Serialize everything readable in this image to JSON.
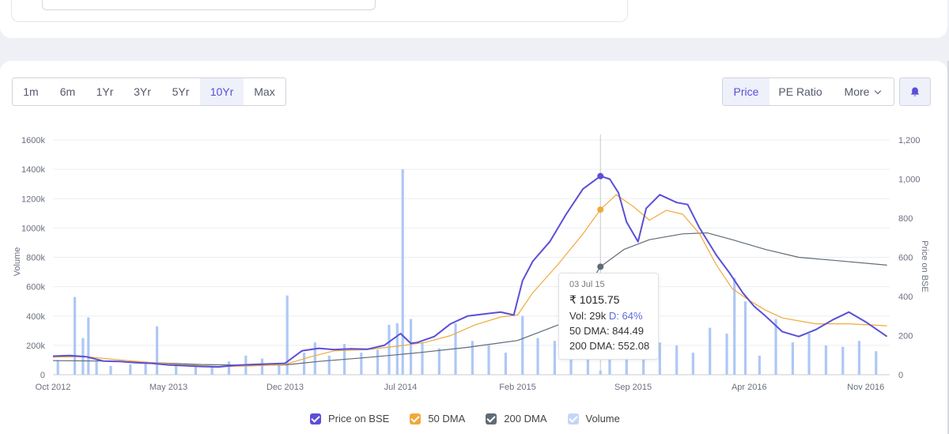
{
  "range_buttons": [
    "1m",
    "6m",
    "1Yr",
    "3Yr",
    "5Yr",
    "10Yr",
    "Max"
  ],
  "active_range": "10Yr",
  "metric_buttons": {
    "price": "Price",
    "pe": "PE Ratio",
    "more": "More"
  },
  "tooltip": {
    "date": "03 Jul 15",
    "price": "₹ 1015.75",
    "vol_label": "Vol: 29k",
    "delivery": "D: 64%",
    "dma50": "50 DMA: 844.49",
    "dma200": "200 DMA: 552.08"
  },
  "colors": {
    "price": "#5b4fd6",
    "dma50": "#f0a93b",
    "dma200": "#5f6b76",
    "volume": "#aec8f5",
    "accent": "#5b4fd6"
  },
  "legend": [
    {
      "label": "Price on BSE",
      "color": "#5b4fd6"
    },
    {
      "label": "50 DMA",
      "color": "#f0a93b"
    },
    {
      "label": "200 DMA",
      "color": "#5f6b76"
    },
    {
      "label": "Volume",
      "color": "#c2d6f7"
    }
  ],
  "chart_data": {
    "type": "line",
    "xlabel": "",
    "ylabel_left": "Volume",
    "ylabel_right": "Price on BSE",
    "x_ticks": [
      "Oct 2012",
      "May 2013",
      "Dec 2013",
      "Jul 2014",
      "Feb 2015",
      "Sep 2015",
      "Apr 2016",
      "Nov 2016"
    ],
    "x_range": [
      "2012-10-01",
      "2016-12-15"
    ],
    "ylim_left": [
      0,
      1600000
    ],
    "left_ticks": [
      "0",
      "200k",
      "400k",
      "600k",
      "800k",
      "1000k",
      "1200k",
      "1400k",
      "1600k"
    ],
    "ylim_right": [
      0,
      1200
    ],
    "right_ticks": [
      "0",
      "200",
      "400",
      "600",
      "800",
      "1,000",
      "1,200"
    ],
    "grid": true,
    "legend_position": "bottom",
    "series": [
      {
        "name": "Price on BSE",
        "points": [
          [
            "2012-10-01",
            95
          ],
          [
            "2012-11-01",
            98
          ],
          [
            "2012-12-01",
            92
          ],
          [
            "2013-01-01",
            70
          ],
          [
            "2013-02-01",
            68
          ],
          [
            "2013-03-01",
            62
          ],
          [
            "2013-04-01",
            58
          ],
          [
            "2013-05-01",
            50
          ],
          [
            "2013-06-01",
            46
          ],
          [
            "2013-07-01",
            42
          ],
          [
            "2013-08-01",
            40
          ],
          [
            "2013-09-01",
            48
          ],
          [
            "2013-10-01",
            52
          ],
          [
            "2013-11-01",
            55
          ],
          [
            "2013-12-01",
            58
          ],
          [
            "2014-01-01",
            122
          ],
          [
            "2014-02-01",
            135
          ],
          [
            "2014-03-01",
            128
          ],
          [
            "2014-04-01",
            132
          ],
          [
            "2014-05-01",
            130
          ],
          [
            "2014-06-01",
            150
          ],
          [
            "2014-07-01",
            210
          ],
          [
            "2014-07-20",
            160
          ],
          [
            "2014-08-01",
            165
          ],
          [
            "2014-09-01",
            195
          ],
          [
            "2014-10-01",
            260
          ],
          [
            "2014-11-01",
            300
          ],
          [
            "2014-12-01",
            310
          ],
          [
            "2015-01-01",
            320
          ],
          [
            "2015-01-25",
            305
          ],
          [
            "2015-02-10",
            480
          ],
          [
            "2015-03-01",
            580
          ],
          [
            "2015-04-01",
            680
          ],
          [
            "2015-05-01",
            820
          ],
          [
            "2015-06-01",
            950
          ],
          [
            "2015-07-03",
            1015
          ],
          [
            "2015-07-20",
            1000
          ],
          [
            "2015-08-05",
            930
          ],
          [
            "2015-08-20",
            780
          ],
          [
            "2015-09-10",
            680
          ],
          [
            "2015-09-25",
            850
          ],
          [
            "2015-10-20",
            920
          ],
          [
            "2015-11-20",
            880
          ],
          [
            "2015-12-10",
            870
          ],
          [
            "2016-01-01",
            750
          ],
          [
            "2016-02-01",
            610
          ],
          [
            "2016-02-25",
            520
          ],
          [
            "2016-03-20",
            420
          ],
          [
            "2016-04-10",
            350
          ],
          [
            "2016-05-01",
            300
          ],
          [
            "2016-06-01",
            220
          ],
          [
            "2016-07-01",
            195
          ],
          [
            "2016-08-01",
            230
          ],
          [
            "2016-09-01",
            280
          ],
          [
            "2016-10-01",
            320
          ],
          [
            "2016-11-01",
            270
          ],
          [
            "2016-12-10",
            195
          ]
        ]
      },
      {
        "name": "50 DMA",
        "points": [
          [
            "2012-10-01",
            90
          ],
          [
            "2012-12-01",
            92
          ],
          [
            "2013-02-01",
            75
          ],
          [
            "2013-04-01",
            62
          ],
          [
            "2013-06-01",
            50
          ],
          [
            "2013-08-01",
            42
          ],
          [
            "2013-10-01",
            45
          ],
          [
            "2013-12-01",
            52
          ],
          [
            "2014-01-15",
            90
          ],
          [
            "2014-03-01",
            122
          ],
          [
            "2014-05-01",
            128
          ],
          [
            "2014-07-01",
            148
          ],
          [
            "2014-08-15",
            165
          ],
          [
            "2014-10-01",
            200
          ],
          [
            "2014-11-15",
            255
          ],
          [
            "2015-01-01",
            295
          ],
          [
            "2015-02-01",
            305
          ],
          [
            "2015-03-01",
            420
          ],
          [
            "2015-04-15",
            560
          ],
          [
            "2015-06-01",
            720
          ],
          [
            "2015-07-03",
            844
          ],
          [
            "2015-08-01",
            920
          ],
          [
            "2015-09-01",
            860
          ],
          [
            "2015-10-01",
            790
          ],
          [
            "2015-11-01",
            840
          ],
          [
            "2015-12-01",
            820
          ],
          [
            "2016-01-01",
            720
          ],
          [
            "2016-02-01",
            560
          ],
          [
            "2016-03-01",
            440
          ],
          [
            "2016-04-01",
            380
          ],
          [
            "2016-05-01",
            330
          ],
          [
            "2016-06-01",
            290
          ],
          [
            "2016-08-01",
            260
          ],
          [
            "2016-10-01",
            260
          ],
          [
            "2016-12-10",
            250
          ]
        ]
      },
      {
        "name": "200 DMA",
        "points": [
          [
            "2012-10-01",
            72
          ],
          [
            "2013-01-01",
            70
          ],
          [
            "2013-04-01",
            62
          ],
          [
            "2013-07-01",
            52
          ],
          [
            "2013-10-01",
            48
          ],
          [
            "2013-12-01",
            50
          ],
          [
            "2014-02-01",
            68
          ],
          [
            "2014-05-01",
            88
          ],
          [
            "2014-08-01",
            112
          ],
          [
            "2014-11-01",
            140
          ],
          [
            "2015-02-01",
            175
          ],
          [
            "2015-05-01",
            270
          ],
          [
            "2015-07-03",
            552
          ],
          [
            "2015-08-15",
            640
          ],
          [
            "2015-10-01",
            690
          ],
          [
            "2015-12-01",
            720
          ],
          [
            "2016-01-15",
            725
          ],
          [
            "2016-03-01",
            690
          ],
          [
            "2016-05-01",
            640
          ],
          [
            "2016-07-01",
            600
          ],
          [
            "2016-09-01",
            585
          ],
          [
            "2016-12-10",
            560
          ]
        ]
      }
    ],
    "volume": [
      [
        "2012-10-10",
        100000
      ],
      [
        "2012-11-10",
        530000
      ],
      [
        "2012-11-25",
        250000
      ],
      [
        "2012-12-05",
        390000
      ],
      [
        "2012-12-20",
        90000
      ],
      [
        "2013-01-15",
        60000
      ],
      [
        "2013-02-20",
        70000
      ],
      [
        "2013-03-20",
        90000
      ],
      [
        "2013-04-10",
        330000
      ],
      [
        "2013-05-15",
        80000
      ],
      [
        "2013-06-20",
        60000
      ],
      [
        "2013-07-20",
        50000
      ],
      [
        "2013-08-20",
        90000
      ],
      [
        "2013-09-20",
        130000
      ],
      [
        "2013-10-20",
        110000
      ],
      [
        "2013-11-20",
        70000
      ],
      [
        "2013-12-05",
        540000
      ],
      [
        "2014-01-05",
        150000
      ],
      [
        "2014-01-25",
        220000
      ],
      [
        "2014-02-20",
        130000
      ],
      [
        "2014-03-20",
        210000
      ],
      [
        "2014-04-20",
        150000
      ],
      [
        "2014-05-20",
        170000
      ],
      [
        "2014-06-10",
        340000
      ],
      [
        "2014-06-25",
        350000
      ],
      [
        "2014-07-05",
        1400000
      ],
      [
        "2014-07-20",
        380000
      ],
      [
        "2014-08-10",
        220000
      ],
      [
        "2014-09-10",
        180000
      ],
      [
        "2014-10-10",
        350000
      ],
      [
        "2014-11-10",
        230000
      ],
      [
        "2014-12-10",
        200000
      ],
      [
        "2015-01-10",
        150000
      ],
      [
        "2015-02-10",
        400000
      ],
      [
        "2015-03-10",
        250000
      ],
      [
        "2015-04-10",
        230000
      ],
      [
        "2015-05-10",
        300000
      ],
      [
        "2015-06-10",
        350000
      ],
      [
        "2015-07-03",
        29000
      ],
      [
        "2015-07-20",
        190000
      ],
      [
        "2015-08-20",
        250000
      ],
      [
        "2015-09-20",
        150000
      ],
      [
        "2015-10-20",
        220000
      ],
      [
        "2015-11-20",
        200000
      ],
      [
        "2015-12-20",
        150000
      ],
      [
        "2016-01-20",
        320000
      ],
      [
        "2016-02-20",
        280000
      ],
      [
        "2016-03-05",
        660000
      ],
      [
        "2016-03-25",
        500000
      ],
      [
        "2016-04-20",
        130000
      ],
      [
        "2016-05-20",
        380000
      ],
      [
        "2016-06-20",
        220000
      ],
      [
        "2016-07-20",
        280000
      ],
      [
        "2016-08-20",
        200000
      ],
      [
        "2016-09-20",
        190000
      ],
      [
        "2016-10-20",
        230000
      ],
      [
        "2016-11-20",
        160000
      ]
    ],
    "annotations": [
      {
        "date": "2015-07-03",
        "label": "03 Jul 15"
      }
    ]
  }
}
